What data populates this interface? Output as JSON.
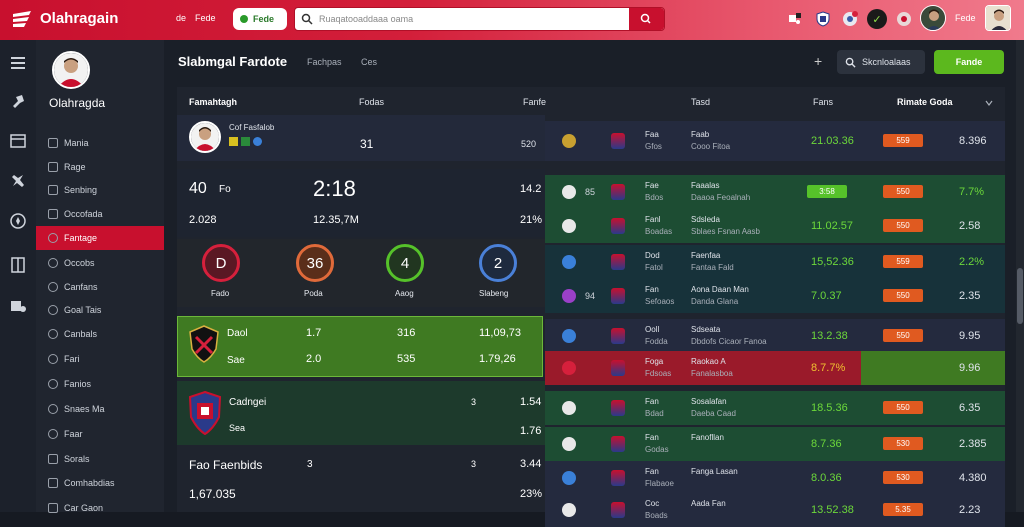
{
  "app": {
    "brand": "Olahragain",
    "top_links": [
      "de",
      "Fede"
    ],
    "pill_label": "Fede",
    "search_placeholder": "Ruaqatooaddaaa oama",
    "user_label": "Fede"
  },
  "sidebar": {
    "profile_name": "Olahragda",
    "items": [
      {
        "label": "Mania",
        "icon": "grid-icon"
      },
      {
        "label": "Rage",
        "icon": "grid-icon"
      },
      {
        "label": "Senbing",
        "icon": "card-icon"
      },
      {
        "label": "Occofada",
        "icon": "card-icon"
      },
      {
        "label": "Fantage",
        "icon": "circle-icon",
        "active": true
      },
      {
        "label": "Occobs",
        "icon": "circle-icon"
      },
      {
        "label": "Canfans",
        "icon": "circle-icon"
      },
      {
        "label": "Goal Tais",
        "icon": "circle-icon"
      },
      {
        "label": "Canbals",
        "icon": "circle-icon"
      },
      {
        "label": "Fari",
        "icon": "circle-icon"
      },
      {
        "label": "Fanios",
        "icon": "circle-icon"
      },
      {
        "label": "Snaes Ma",
        "icon": "circle-icon"
      },
      {
        "label": "Faar",
        "icon": "circle-icon"
      },
      {
        "label": "Sorals",
        "icon": "card-icon"
      },
      {
        "label": "Comhabdias",
        "icon": "card-icon"
      },
      {
        "label": "Car Gaon",
        "icon": "card-icon"
      }
    ]
  },
  "header": {
    "title": "Slabmgal Fardote",
    "links": [
      "Fachpas",
      "Ces"
    ],
    "filter_label": "Skcnloalaas",
    "action_label": "Fande"
  },
  "table": {
    "columns": [
      "Famahtagh",
      "Fodas",
      "Fanfe",
      "Tasd",
      "Fans",
      "Rimate Goda"
    ],
    "profile_row": {
      "name": "Cof Fasfalob",
      "value": "31",
      "value2": "520"
    }
  },
  "score_block": {
    "a": "40",
    "a_label": "Fo",
    "clock": "2:18",
    "b": "14.2",
    "c": "2.028",
    "d": "12.35,7M",
    "e": "21%"
  },
  "rings": [
    {
      "value": "D",
      "label": "Fado",
      "color": "red"
    },
    {
      "value": "36",
      "label": "Poda",
      "color": "orange"
    },
    {
      "value": "4",
      "label": "Aaog",
      "color": "green"
    },
    {
      "value": "2",
      "label": "Slabeng",
      "color": "blue"
    }
  ],
  "green_block": {
    "name1": "Daol",
    "v1": "1.7",
    "v2": "316",
    "v3": "11,09,73",
    "name2": "Sae",
    "v4": "2.0",
    "v5": "535",
    "v6": "1.79,26"
  },
  "team_block": {
    "name": "Cadngei",
    "sub": "Sea",
    "v1": "3",
    "v2": "1.54",
    "v3": "1.76"
  },
  "bottom_block": {
    "name": "Fao Faenbids",
    "v1": "3",
    "v2": "3",
    "v3": "3.44",
    "total": "1,67.035",
    "pct": "23%"
  },
  "matches": [
    {
      "team_a": "Faa",
      "team_b": "Gfos",
      "detail_a": "Faab",
      "detail_b": "Cooo Fitoa",
      "score": "21.03.36",
      "score_tag": "",
      "odds": "559",
      "last": "8.396",
      "num": "",
      "theme": "navy"
    },
    {
      "team_a": "Fae",
      "team_b": "Bdos",
      "detail_a": "Faaalas",
      "detail_b": "Daaoa Feoalnah",
      "score": "",
      "score_tag": "3:58",
      "odds": "550",
      "last": "7.7%",
      "num": "85",
      "theme": "green"
    },
    {
      "team_a": "Fanl",
      "team_b": "Boadas",
      "detail_a": "Sdsleda",
      "detail_b": "Sblaes Fsnan Aasb",
      "score": "11.02.57",
      "score_tag": "",
      "odds": "550",
      "last": "2.58",
      "num": "",
      "theme": "green"
    },
    {
      "team_a": "Dod",
      "team_b": "Fatol",
      "detail_a": "Faenfaa",
      "detail_b": "Fantaa Fald",
      "score": "15,52.36",
      "score_tag": "",
      "odds": "559",
      "last": "2.2%",
      "num": "",
      "theme": "teal"
    },
    {
      "team_a": "Fan",
      "team_b": "Sefoaos",
      "detail_a": "Aona Daan Man",
      "detail_b": "Danda Glana",
      "score": "7.0.37",
      "score_tag": "",
      "odds": "550",
      "last": "2.35",
      "num": "94",
      "theme": "teal"
    },
    {
      "team_a": "Ooll",
      "team_b": "Fodda",
      "detail_a": "Sdseata",
      "detail_b": "Dbdofs Cicaor Fanoa",
      "score": "13.2.38",
      "score_tag": "",
      "odds": "550",
      "last": "9.95",
      "num": "",
      "theme": "navy"
    },
    {
      "team_a": "Foga",
      "team_b": "Fdsoas",
      "detail_a": "Raokao A",
      "detail_b": "Fanalasboa",
      "score": "8.7.7%",
      "score_tag": "",
      "odds": "",
      "last": "9.96",
      "num": "",
      "theme": "red"
    },
    {
      "team_a": "Fan",
      "team_b": "Bdad",
      "detail_a": "Sosalafan",
      "detail_b": "Daeba Caad",
      "score": "18.5.36",
      "score_tag": "",
      "odds": "550",
      "last": "6.35",
      "num": "",
      "theme": "green"
    },
    {
      "team_a": "Fan",
      "team_b": "Godas",
      "detail_a": "Fanofllan",
      "detail_b": "",
      "score": "8.7.36",
      "score_tag": "",
      "odds": "530",
      "last": "2.385",
      "num": "",
      "theme": "green"
    },
    {
      "team_a": "Fan",
      "team_b": "Flabaoe",
      "detail_a": "Fanga Lasan",
      "detail_b": "",
      "score": "8.0.36",
      "score_tag": "",
      "odds": "530",
      "last": "4.380",
      "num": "",
      "theme": "navy"
    },
    {
      "team_a": "Coc",
      "team_b": "Boads",
      "detail_a": "Aada Fan",
      "detail_b": "",
      "score": "13.52.38",
      "score_tag": "",
      "odds": "5.35",
      "last": "2.23",
      "num": "",
      "theme": "navy"
    }
  ]
}
